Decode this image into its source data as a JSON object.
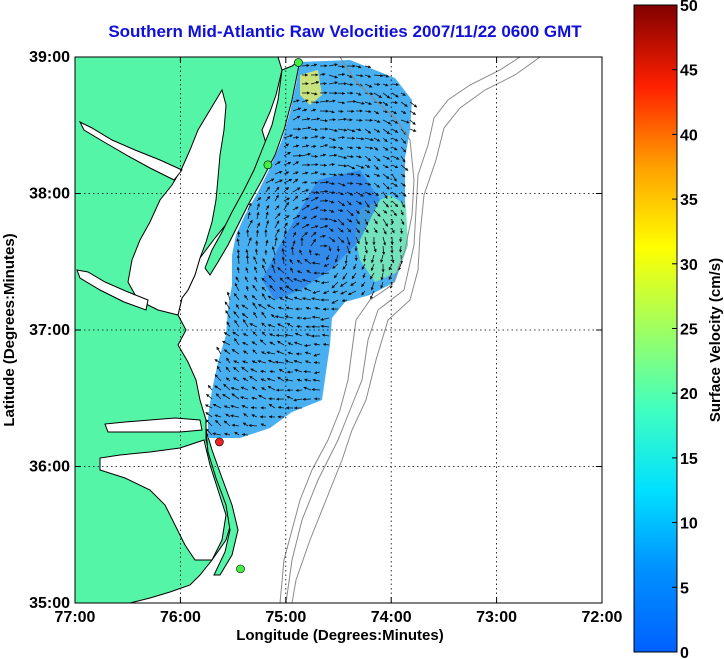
{
  "title": "Southern Mid-Atlantic Raw Velocities 2007/11/22 0600 GMT",
  "map": {
    "xlabel": "Longitude (Degrees:Minutes)",
    "ylabel": "Latitude (Degrees:Minutes)",
    "x_ticks": [
      "77:00",
      "76:00",
      "75:00",
      "74:00",
      "73:00",
      "72:00"
    ],
    "y_ticks": [
      "39:00",
      "38:00",
      "37:00",
      "36:00",
      "35:00"
    ],
    "lon_range": [
      -77,
      -72
    ],
    "lat_range": [
      35,
      39
    ],
    "land_color": "#55f5a8",
    "water_color": "#ffffff",
    "grid": "dotted",
    "stations": [
      {
        "lon": -74.88,
        "lat": 38.96,
        "color": "#44ee44"
      },
      {
        "lon": -75.17,
        "lat": 38.21,
        "color": "#44ee44"
      },
      {
        "lon": -75.63,
        "lat": 36.18,
        "color": "#ee2222"
      },
      {
        "lon": -75.43,
        "lat": 35.25,
        "color": "#44ee44"
      }
    ]
  },
  "colorbar": {
    "label": "Surface Velocity (cm/s)",
    "ticks": [
      "50",
      "45",
      "40",
      "35",
      "30",
      "25",
      "20",
      "15",
      "10",
      "5",
      "0"
    ],
    "range": [
      0,
      50
    ],
    "colormap": "jet"
  }
}
